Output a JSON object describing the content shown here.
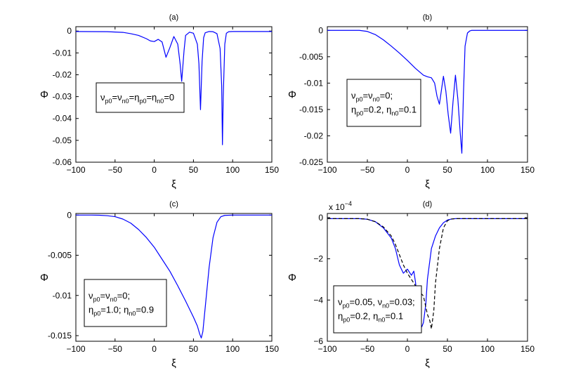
{
  "chart_data": [
    {
      "type": "line",
      "title": "(a)",
      "xlabel": "ξ",
      "ylabel": "Φ",
      "xlim": [
        -100,
        150
      ],
      "ylim": [
        -0.06,
        0.002
      ],
      "xticks": [
        -100,
        -50,
        0,
        50,
        100,
        150
      ],
      "xtick_labels": [
        "−100",
        "−50",
        "0",
        "50",
        "100",
        "150"
      ],
      "yticks": [
        0,
        -0.01,
        -0.02,
        -0.03,
        -0.04,
        -0.05,
        -0.06
      ],
      "ytick_labels": [
        "0",
        "-0.01",
        "-0.02",
        "-0.03",
        "-0.04",
        "-0.05",
        "-0.06"
      ],
      "exponent": "",
      "legend_lines": [
        [
          {
            "t": "ν",
            "s": ""
          },
          {
            "t": "p0",
            "s": "sub"
          },
          {
            "t": "=ν",
            "s": ""
          },
          {
            "t": "n0",
            "s": "sub"
          },
          {
            "t": "=η",
            "s": ""
          },
          {
            "t": "p0",
            "s": "sub"
          },
          {
            "t": "=η",
            "s": ""
          },
          {
            "t": "n0",
            "s": "sub"
          },
          {
            "t": "=0",
            "s": ""
          }
        ]
      ],
      "series": [
        {
          "color": "#0000ff",
          "dashed": false,
          "x": [
            -100,
            -60,
            -40,
            -30,
            -20,
            -10,
            -5,
            0,
            5,
            10,
            15,
            20,
            25,
            30,
            33,
            35,
            38,
            40,
            45,
            50,
            55,
            57,
            59,
            61,
            63,
            65,
            70,
            75,
            80,
            84,
            86,
            87,
            88,
            90,
            92,
            95,
            100,
            110,
            150
          ],
          "y": [
            -0.0002,
            -0.0003,
            -0.0006,
            -0.0012,
            -0.002,
            -0.0035,
            -0.0045,
            -0.0048,
            -0.0038,
            -0.005,
            -0.012,
            -0.0075,
            -0.0025,
            -0.006,
            -0.015,
            -0.023,
            -0.009,
            -0.002,
            -0.0005,
            -0.001,
            -0.006,
            -0.015,
            -0.036,
            -0.014,
            -0.003,
            -0.0008,
            -0.0002,
            -0.0003,
            -0.0012,
            -0.008,
            -0.025,
            -0.052,
            -0.03,
            -0.006,
            -0.001,
            -0.0003,
            -0.0002,
            -0.0002,
            -0.0002
          ]
        }
      ]
    },
    {
      "type": "line",
      "title": "(b)",
      "xlabel": "ξ",
      "ylabel": "Φ",
      "xlim": [
        -100,
        150
      ],
      "ylim": [
        -0.025,
        0.0007
      ],
      "xticks": [
        -100,
        -50,
        0,
        50,
        100,
        150
      ],
      "xtick_labels": [
        "−100",
        "−50",
        "0",
        "50",
        "100",
        "150"
      ],
      "yticks": [
        0,
        -0.005,
        -0.01,
        -0.015,
        -0.02,
        -0.025
      ],
      "ytick_labels": [
        "0",
        "-0.005",
        "-0.01",
        "-0.015",
        "-0.02",
        "-0.025"
      ],
      "exponent": "",
      "legend_lines": [
        [
          {
            "t": "ν",
            "s": ""
          },
          {
            "t": "p0",
            "s": "sub"
          },
          {
            "t": "=ν",
            "s": ""
          },
          {
            "t": "n0",
            "s": "sub"
          },
          {
            "t": "=0;",
            "s": ""
          }
        ],
        [
          {
            "t": "η",
            "s": ""
          },
          {
            "t": "p0",
            "s": "sub"
          },
          {
            "t": "=0.2, η",
            "s": ""
          },
          {
            "t": "n0",
            "s": "sub"
          },
          {
            "t": "=0.1",
            "s": ""
          }
        ]
      ],
      "series": [
        {
          "color": "#0000ff",
          "dashed": false,
          "x": [
            -100,
            -60,
            -50,
            -40,
            -30,
            -20,
            -10,
            0,
            10,
            20,
            25,
            30,
            34,
            37,
            40,
            43,
            45,
            48,
            51,
            54,
            57,
            60,
            63,
            66,
            68,
            70,
            72,
            75,
            78,
            80,
            100,
            150
          ],
          "y": [
            0,
            0,
            -0.0002,
            -0.0008,
            -0.0018,
            -0.003,
            -0.0043,
            -0.0057,
            -0.0072,
            -0.0085,
            -0.0088,
            -0.009,
            -0.01,
            -0.0125,
            -0.014,
            -0.0108,
            -0.0087,
            -0.0115,
            -0.016,
            -0.0195,
            -0.0135,
            -0.0085,
            -0.013,
            -0.0195,
            -0.0233,
            -0.012,
            -0.003,
            -0.0005,
            -0.0001,
            0,
            0,
            0
          ]
        }
      ]
    },
    {
      "type": "line",
      "title": "(c)",
      "xlabel": "ξ",
      "ylabel": "Φ",
      "xlim": [
        -100,
        150
      ],
      "ylim": [
        -0.0157,
        0.0002
      ],
      "xticks": [
        -100,
        -50,
        0,
        50,
        100,
        150
      ],
      "xtick_labels": [
        "−100",
        "−50",
        "0",
        "50",
        "100",
        "150"
      ],
      "yticks": [
        0,
        -0.005,
        -0.01,
        -0.015
      ],
      "ytick_labels": [
        "0",
        "-0.005",
        "-0.01",
        "-0.015"
      ],
      "exponent": "",
      "legend_lines": [
        [
          {
            "t": "ν",
            "s": ""
          },
          {
            "t": "p0",
            "s": "sub"
          },
          {
            "t": "=ν",
            "s": ""
          },
          {
            "t": "n0",
            "s": "sub"
          },
          {
            "t": "=0;",
            "s": ""
          }
        ],
        [
          {
            "t": "η",
            "s": ""
          },
          {
            "t": "p0",
            "s": "sub"
          },
          {
            "t": "=1.0; η",
            "s": ""
          },
          {
            "t": "n0",
            "s": "sub"
          },
          {
            "t": "=0.9",
            "s": ""
          }
        ]
      ],
      "series": [
        {
          "color": "#0000ff",
          "dashed": false,
          "x": [
            -100,
            -80,
            -70,
            -60,
            -50,
            -40,
            -30,
            -20,
            -10,
            0,
            10,
            20,
            30,
            40,
            50,
            55,
            58,
            60,
            62,
            65,
            70,
            75,
            80,
            85,
            90,
            100,
            150
          ],
          "y": [
            0,
            0,
            -2e-05,
            -8e-05,
            -0.0002,
            -0.0005,
            -0.001,
            -0.0018,
            -0.0028,
            -0.004,
            -0.0055,
            -0.007,
            -0.0088,
            -0.0107,
            -0.0127,
            -0.0138,
            -0.0148,
            -0.0153,
            -0.0145,
            -0.0115,
            -0.0065,
            -0.0028,
            -0.0009,
            -0.0002,
            -4e-05,
            0,
            0
          ]
        }
      ]
    },
    {
      "type": "line",
      "title": "(d)",
      "xlabel": "ξ",
      "ylabel": "Φ",
      "xlim": [
        -100,
        150
      ],
      "ylim": [
        -6,
        0.2
      ],
      "xticks": [
        -100,
        -50,
        0,
        50,
        100,
        150
      ],
      "xtick_labels": [
        "−100",
        "−50",
        "0",
        "50",
        "100",
        "150"
      ],
      "yticks": [
        0,
        -2,
        -4,
        -6
      ],
      "ytick_labels": [
        "0",
        "−2",
        "−4",
        "−6"
      ],
      "exponent": "x 10",
      "exponent_power": "−4",
      "legend_lines": [
        [
          {
            "t": "ν",
            "s": ""
          },
          {
            "t": "p0",
            "s": "sub"
          },
          {
            "t": "=0.05, ν",
            "s": ""
          },
          {
            "t": "n0",
            "s": "sub"
          },
          {
            "t": "=0.03;",
            "s": ""
          }
        ],
        [
          {
            "t": "η",
            "s": ""
          },
          {
            "t": "p0",
            "s": "sub"
          },
          {
            "t": "=0.2, η",
            "s": ""
          },
          {
            "t": "n0",
            "s": "sub"
          },
          {
            "t": "=0.1",
            "s": ""
          }
        ]
      ],
      "series": [
        {
          "color": "#0000ff",
          "dashed": false,
          "x": [
            -100,
            -60,
            -50,
            -40,
            -30,
            -20,
            -15,
            -10,
            -5,
            0,
            5,
            8,
            10,
            15,
            18,
            20,
            23,
            25,
            30,
            35,
            40,
            45,
            50,
            55,
            60,
            70,
            100,
            150
          ],
          "y": [
            -0.05,
            -0.05,
            -0.08,
            -0.2,
            -0.5,
            -1.0,
            -1.5,
            -2.3,
            -2.7,
            -2.5,
            -2.8,
            -2.6,
            -3.1,
            -4.8,
            -5.3,
            -5.1,
            -4.2,
            -3.0,
            -1.5,
            -0.9,
            -0.5,
            -0.25,
            -0.12,
            -0.07,
            -0.05,
            -0.05,
            -0.05,
            -0.05
          ]
        },
        {
          "color": "#000000",
          "dashed": true,
          "x": [
            -100,
            -60,
            -50,
            -40,
            -30,
            -20,
            -15,
            -10,
            -5,
            0,
            5,
            10,
            15,
            20,
            25,
            28,
            30,
            33,
            35,
            40,
            45,
            50,
            55,
            60,
            70,
            100,
            150
          ],
          "y": [
            -0.05,
            -0.05,
            -0.08,
            -0.2,
            -0.45,
            -0.9,
            -1.3,
            -1.8,
            -2.3,
            -2.7,
            -3.0,
            -3.3,
            -3.6,
            -3.8,
            -4.7,
            -5.0,
            -5.4,
            -4.5,
            -3.2,
            -1.5,
            -0.5,
            -0.15,
            -0.07,
            -0.05,
            -0.05,
            -0.05,
            -0.05
          ]
        }
      ]
    }
  ]
}
